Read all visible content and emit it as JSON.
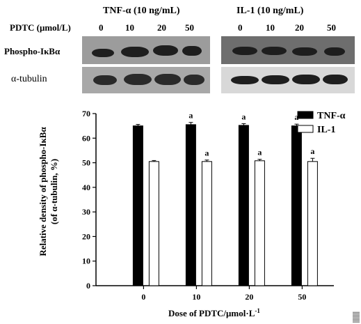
{
  "blot": {
    "tnf_header": "TNF-α (10 ng/mL)",
    "il1_header": "IL-1 (10 ng/mL)",
    "pdtc_label": "PDTC (μmol/L)",
    "doses_left": [
      "0",
      "10",
      "20",
      "50"
    ],
    "doses_right": [
      "0",
      "10",
      "20",
      "50"
    ],
    "row1_label": "Phospho-IκBα",
    "row2_label": "α-tubulin",
    "colors": {
      "panel_left_bg": "#9c9c9c",
      "panel_right_bg": "#6e6e6e",
      "band": "#1e1e1e",
      "panel_tubulin_right_bg": "#d8d8d8"
    }
  },
  "chart_data": {
    "type": "bar",
    "categories": [
      "0",
      "10",
      "20",
      "50"
    ],
    "series": [
      {
        "name": "TNF-α",
        "values": [
          65,
          65.5,
          65.2,
          65
        ],
        "errors": [
          0.6,
          0.9,
          0.7,
          0.7
        ],
        "color": "#000000",
        "annotations": [
          "",
          "a",
          "a",
          "a"
        ]
      },
      {
        "name": "IL-1",
        "values": [
          50.5,
          50.5,
          50.8,
          50.5
        ],
        "errors": [
          0.4,
          0.6,
          0.6,
          1.3
        ],
        "color": "#ffffff",
        "annotations": [
          "",
          "a",
          "a",
          "a"
        ]
      }
    ],
    "ylabel_line1": "Relative density of phospho-IκBα",
    "ylabel_line2": "(of α-tubulin, %)",
    "xlabel_main": "Dose of PDTC/μmol·L",
    "xlabel_sup": "-1",
    "ylim": [
      0,
      70
    ],
    "yticks": [
      "0",
      "10",
      "20",
      "30",
      "40",
      "50",
      "60",
      "70"
    ],
    "legend_position": "top-right",
    "grid": false
  }
}
